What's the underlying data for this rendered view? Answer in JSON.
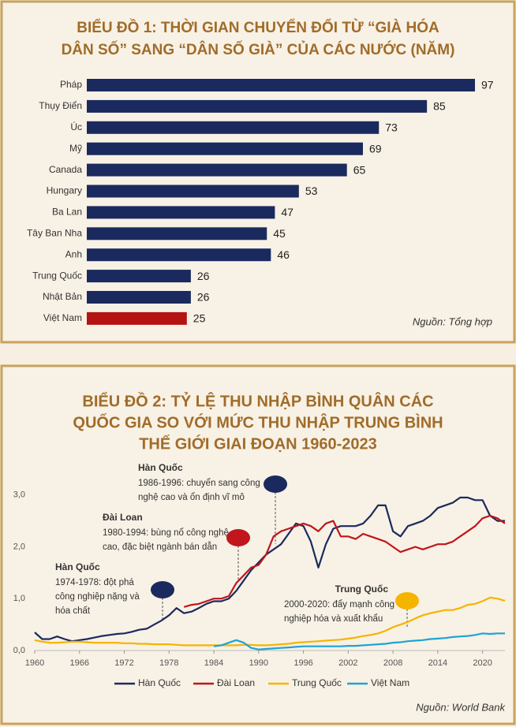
{
  "chart_data": [
    {
      "type": "barh",
      "title": [
        "BIỂU ĐỒ 1: THỜI GIAN CHUYỂN ĐỔI TỪ “GIÀ HÓA",
        "DÂN SỐ” SANG “DÂN SỐ GIÀ” CỦA CÁC NƯỚC (NĂM)"
      ],
      "categories": [
        "Pháp",
        "Thụy Điển",
        "Úc",
        "Mỹ",
        "Canada",
        "Hungary",
        "Ba Lan",
        "Tây Ban Nha",
        "Anh",
        "Trung Quốc",
        "Nhật Bản",
        "Việt Nam"
      ],
      "values": [
        97,
        85,
        73,
        69,
        65,
        53,
        47,
        45,
        46,
        26,
        26,
        25
      ],
      "colors": [
        "#1b2a5e",
        "#1b2a5e",
        "#1b2a5e",
        "#1b2a5e",
        "#1b2a5e",
        "#1b2a5e",
        "#1b2a5e",
        "#1b2a5e",
        "#1b2a5e",
        "#1b2a5e",
        "#1b2a5e",
        "#b51212"
      ],
      "source": "Nguồn: Tổng hợp"
    },
    {
      "type": "line",
      "title": [
        "BIỂU ĐỒ 2: TỶ LỆ THU NHẬP BÌNH QUÂN CÁC",
        "QUỐC GIA SO VỚI MỨC THU NHẬP TRUNG BÌNH",
        "THẾ GIỚI GIAI ĐOẠN 1960-2023"
      ],
      "x": [
        1960,
        1961,
        1962,
        1963,
        1964,
        1965,
        1966,
        1967,
        1968,
        1969,
        1970,
        1971,
        1972,
        1973,
        1974,
        1975,
        1976,
        1977,
        1978,
        1979,
        1980,
        1981,
        1982,
        1983,
        1984,
        1985,
        1986,
        1987,
        1988,
        1989,
        1990,
        1991,
        1992,
        1993,
        1994,
        1995,
        1996,
        1997,
        1998,
        1999,
        2000,
        2001,
        2002,
        2003,
        2004,
        2005,
        2006,
        2007,
        2008,
        2009,
        2010,
        2011,
        2012,
        2013,
        2014,
        2015,
        2016,
        2017,
        2018,
        2019,
        2020,
        2021,
        2022,
        2023
      ],
      "xlim": [
        1960,
        2023
      ],
      "xticks": [
        1960,
        1966,
        1972,
        1978,
        1984,
        1990,
        1996,
        2002,
        2008,
        2014,
        2020
      ],
      "ylim": [
        0,
        3.3
      ],
      "yticks": [
        {
          "value": 0,
          "label": "0,0"
        },
        {
          "value": 1,
          "label": "1,0"
        },
        {
          "value": 2,
          "label": "2,0"
        },
        {
          "value": 3,
          "label": "3,0"
        }
      ],
      "legend": "bottom",
      "series": [
        {
          "name": "Hàn Quốc",
          "color": "#1b2a5e",
          "values": [
            0.35,
            0.22,
            0.22,
            0.27,
            0.22,
            0.18,
            0.2,
            0.22,
            0.25,
            0.28,
            0.3,
            0.32,
            0.33,
            0.36,
            0.4,
            0.42,
            0.5,
            0.58,
            0.68,
            0.82,
            0.72,
            0.75,
            0.82,
            0.9,
            0.95,
            0.95,
            1.0,
            1.15,
            1.35,
            1.55,
            1.7,
            1.85,
            1.95,
            2.05,
            2.25,
            2.45,
            2.4,
            2.1,
            1.6,
            2.05,
            2.35,
            2.4,
            2.4,
            2.4,
            2.45,
            2.6,
            2.8,
            2.8,
            2.3,
            2.2,
            2.4,
            2.45,
            2.5,
            2.6,
            2.75,
            2.8,
            2.85,
            2.95,
            2.95,
            2.9,
            2.9,
            2.6,
            2.5,
            2.5
          ]
        },
        {
          "name": "Đài Loan",
          "color": "#c0161c",
          "values": [
            null,
            null,
            null,
            null,
            null,
            null,
            null,
            null,
            null,
            null,
            null,
            null,
            null,
            null,
            null,
            null,
            null,
            null,
            null,
            null,
            0.84,
            0.88,
            0.9,
            0.95,
            1.0,
            1.0,
            1.05,
            1.3,
            1.45,
            1.6,
            1.65,
            1.85,
            2.2,
            2.3,
            2.35,
            2.4,
            2.45,
            2.4,
            2.3,
            2.45,
            2.5,
            2.2,
            2.2,
            2.15,
            2.25,
            2.2,
            2.15,
            2.1,
            2.0,
            1.9,
            1.95,
            2.0,
            1.95,
            2.0,
            2.05,
            2.05,
            2.1,
            2.2,
            2.3,
            2.4,
            2.55,
            2.6,
            2.55,
            2.45
          ]
        },
        {
          "name": "Trung Quốc",
          "color": "#f5b400",
          "values": [
            0.2,
            0.17,
            0.15,
            0.15,
            0.16,
            0.17,
            0.17,
            0.16,
            0.15,
            0.15,
            0.15,
            0.15,
            0.14,
            0.14,
            0.13,
            0.13,
            0.12,
            0.12,
            0.12,
            0.11,
            0.1,
            0.1,
            0.1,
            0.1,
            0.1,
            0.1,
            0.1,
            0.1,
            0.11,
            0.11,
            0.1,
            0.1,
            0.11,
            0.12,
            0.13,
            0.15,
            0.16,
            0.17,
            0.18,
            0.19,
            0.2,
            0.21,
            0.23,
            0.25,
            0.28,
            0.3,
            0.33,
            0.38,
            0.45,
            0.5,
            0.55,
            0.62,
            0.68,
            0.72,
            0.75,
            0.78,
            0.78,
            0.82,
            0.88,
            0.9,
            0.95,
            1.02,
            1.0,
            0.96
          ]
        },
        {
          "name": "Việt Nam",
          "color": "#1ea3d6",
          "values": [
            null,
            null,
            null,
            null,
            null,
            null,
            null,
            null,
            null,
            null,
            null,
            null,
            null,
            null,
            null,
            null,
            null,
            null,
            null,
            null,
            null,
            null,
            null,
            null,
            0.08,
            0.1,
            0.15,
            0.2,
            0.15,
            0.05,
            0.02,
            0.03,
            0.04,
            0.05,
            0.06,
            0.07,
            0.08,
            0.08,
            0.08,
            0.08,
            0.08,
            0.08,
            0.09,
            0.09,
            0.1,
            0.11,
            0.12,
            0.13,
            0.15,
            0.16,
            0.18,
            0.19,
            0.2,
            0.22,
            0.23,
            0.24,
            0.26,
            0.27,
            0.28,
            0.3,
            0.33,
            0.32,
            0.33,
            0.33
          ]
        }
      ],
      "annotations": [
        {
          "title": "Hàn Quốc",
          "lines": [
            "1974-1978: đột phá",
            "công nghiệp nặng và",
            "hóa chất"
          ],
          "color": "#1b2a5e"
        },
        {
          "title": "Đài Loan",
          "lines": [
            "1980-1994: bùng nổ công nghệ",
            "cao, đặc biệt ngành bán dẫn"
          ],
          "color": "#c0161c"
        },
        {
          "title": "Hàn Quốc",
          "lines": [
            "1986-1996: chuyển sang công",
            "nghệ cao và ổn định vĩ mô"
          ],
          "color": "#1b2a5e"
        },
        {
          "title": "Trung Quốc",
          "lines": [
            "2000-2020: đẩy mạnh công",
            "nghiệp hóa và xuất khẩu"
          ],
          "color": "#f5b400"
        }
      ],
      "source": "Nguồn: World Bank"
    }
  ]
}
